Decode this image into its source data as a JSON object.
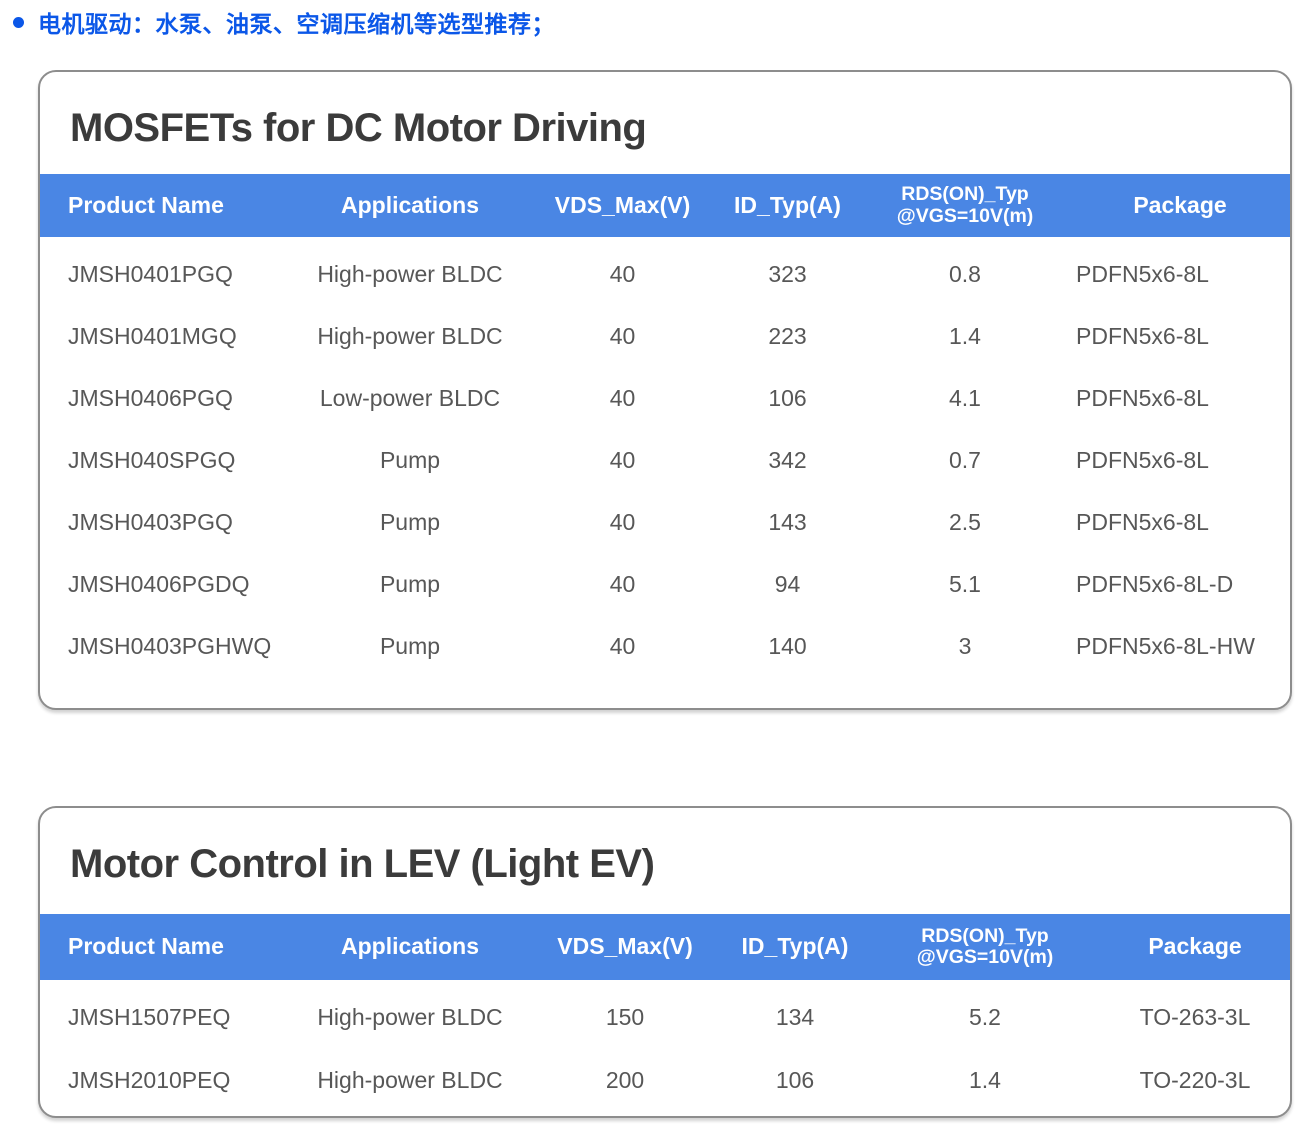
{
  "page": {
    "bullet_text": "电机驱动：水泵、油泵、空调压缩机等选型推荐；"
  },
  "colors": {
    "header_blue": "#4A86E4",
    "bullet_blue": "#0B57E8",
    "title_gray": "#3B3B3B",
    "cell_gray": "#575757",
    "card_border": "#8D8D8D"
  },
  "tables": [
    {
      "title": "MOSFETs for DC Motor Driving",
      "columns": [
        {
          "label": "Product Name"
        },
        {
          "label": "Applications"
        },
        {
          "label": "VDS_Max(V)"
        },
        {
          "label": "ID_Typ(A)"
        },
        {
          "label": "RDS(ON)_Typ",
          "sub": "@VGS=10V(m)"
        },
        {
          "label": "Package"
        }
      ],
      "rows": [
        [
          "JMSH0401PGQ",
          "High-power BLDC",
          "40",
          "323",
          "0.8",
          "PDFN5x6-8L"
        ],
        [
          "JMSH0401MGQ",
          "High-power BLDC",
          "40",
          "223",
          "1.4",
          "PDFN5x6-8L"
        ],
        [
          "JMSH0406PGQ",
          "Low-power BLDC",
          "40",
          "106",
          "4.1",
          "PDFN5x6-8L"
        ],
        [
          "JMSH040SPGQ",
          "Pump",
          "40",
          "342",
          "0.7",
          "PDFN5x6-8L"
        ],
        [
          "JMSH0403PGQ",
          "Pump",
          "40",
          "143",
          "2.5",
          "PDFN5x6-8L"
        ],
        [
          "JMSH0406PGDQ",
          "Pump",
          "40",
          "94",
          "5.1",
          "PDFN5x6-8L-D"
        ],
        [
          "JMSH0403PGHWQ",
          "Pump",
          "40",
          "140",
          "3",
          "PDFN5x6-8L-HW"
        ]
      ]
    },
    {
      "title": "Motor Control in LEV (Light EV)",
      "columns": [
        {
          "label": "Product Name"
        },
        {
          "label": "Applications"
        },
        {
          "label": "VDS_Max(V)"
        },
        {
          "label": "ID_Typ(A)"
        },
        {
          "label": "RDS(ON)_Typ",
          "sub": "@VGS=10V(m)"
        },
        {
          "label": "Package"
        }
      ],
      "rows": [
        [
          "JMSH1507PEQ",
          "High-power BLDC",
          "150",
          "134",
          "5.2",
          "TO-263-3L"
        ],
        [
          "JMSH2010PEQ",
          "High-power BLDC",
          "200",
          "106",
          "1.4",
          "TO-220-3L"
        ]
      ]
    }
  ]
}
